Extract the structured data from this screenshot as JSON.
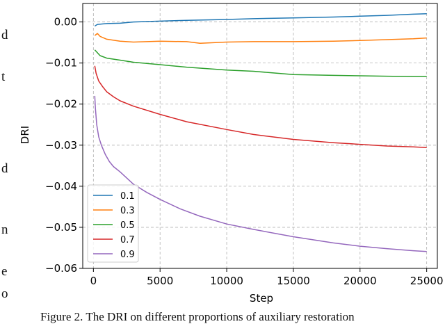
{
  "figure": {
    "caption": "Figure 2. The DRI on different proportions of auxiliary restoration",
    "left_column_fragments": [
      "d",
      "t",
      "d",
      "n",
      "e",
      "o"
    ]
  },
  "chart_data": {
    "type": "line",
    "xlabel": "Step",
    "ylabel": "DRI",
    "xlim": [
      -800,
      25800
    ],
    "ylim": [
      -0.06,
      0.0045
    ],
    "xticks": [
      0,
      5000,
      10000,
      15000,
      20000,
      25000
    ],
    "xtick_labels": [
      "0",
      "5000",
      "10000",
      "15000",
      "20000",
      "25000"
    ],
    "yticks": [
      0.0,
      -0.01,
      -0.02,
      -0.03,
      -0.04,
      -0.05,
      -0.06
    ],
    "ytick_labels": [
      "0.00",
      "−0.01",
      "−0.02",
      "−0.03",
      "−0.04",
      "−0.05",
      "−0.06"
    ],
    "grid": true,
    "legend_position": "lower-left",
    "series": [
      {
        "name": "0.1",
        "color": "#1f77b4",
        "x": [
          100,
          300,
          1000,
          2000,
          3000,
          5000,
          7000,
          10000,
          12000,
          15000,
          18000,
          20000,
          22000,
          24000,
          25000
        ],
        "y": [
          -0.001,
          -0.0006,
          -0.0004,
          -0.0003,
          0.0,
          0.0002,
          0.0004,
          0.0006,
          0.0008,
          0.001,
          0.0012,
          0.0014,
          0.0016,
          0.0019,
          0.002
        ]
      },
      {
        "name": "0.3",
        "color": "#ff7f0e",
        "x": [
          100,
          300,
          500,
          1000,
          2000,
          3000,
          5000,
          7000,
          8000,
          10000,
          12000,
          15000,
          18000,
          20000,
          22000,
          24000,
          25000
        ],
        "y": [
          -0.0033,
          -0.0028,
          -0.0035,
          -0.0042,
          -0.0047,
          -0.0049,
          -0.0047,
          -0.0048,
          -0.0052,
          -0.0049,
          -0.0048,
          -0.0048,
          -0.0047,
          -0.0045,
          -0.0043,
          -0.0041,
          -0.0039
        ]
      },
      {
        "name": "0.5",
        "color": "#2ca02c",
        "x": [
          100,
          300,
          500,
          1000,
          2000,
          3000,
          5000,
          7000,
          10000,
          12000,
          15000,
          18000,
          20000,
          22000,
          24000,
          25000
        ],
        "y": [
          -0.0068,
          -0.0075,
          -0.0082,
          -0.0088,
          -0.0093,
          -0.0098,
          -0.0104,
          -0.011,
          -0.0117,
          -0.012,
          -0.0128,
          -0.013,
          -0.0131,
          -0.0132,
          -0.0133,
          -0.0133
        ]
      },
      {
        "name": "0.7",
        "color": "#d62728",
        "x": [
          100,
          200,
          400,
          700,
          1000,
          1500,
          2000,
          3000,
          5000,
          7000,
          10000,
          12000,
          15000,
          18000,
          20000,
          22000,
          24000,
          25000
        ],
        "y": [
          -0.0107,
          -0.0125,
          -0.0144,
          -0.0158,
          -0.017,
          -0.0182,
          -0.0192,
          -0.0205,
          -0.0225,
          -0.0243,
          -0.0262,
          -0.0274,
          -0.0286,
          -0.0294,
          -0.0298,
          -0.0302,
          -0.0304,
          -0.0306
        ]
      },
      {
        "name": "0.9",
        "color": "#9467bd",
        "x": [
          100,
          150,
          250,
          400,
          600,
          900,
          1200,
          1500,
          2000,
          3000,
          4000,
          5000,
          6500,
          8000,
          10000,
          12000,
          15000,
          18000,
          20000,
          22000,
          24000,
          25000
        ],
        "y": [
          -0.018,
          -0.021,
          -0.025,
          -0.028,
          -0.03,
          -0.0323,
          -0.034,
          -0.0352,
          -0.0365,
          -0.0395,
          -0.0415,
          -0.0432,
          -0.0455,
          -0.0473,
          -0.0492,
          -0.0505,
          -0.0523,
          -0.0538,
          -0.0546,
          -0.0552,
          -0.0557,
          -0.0559
        ]
      }
    ]
  }
}
